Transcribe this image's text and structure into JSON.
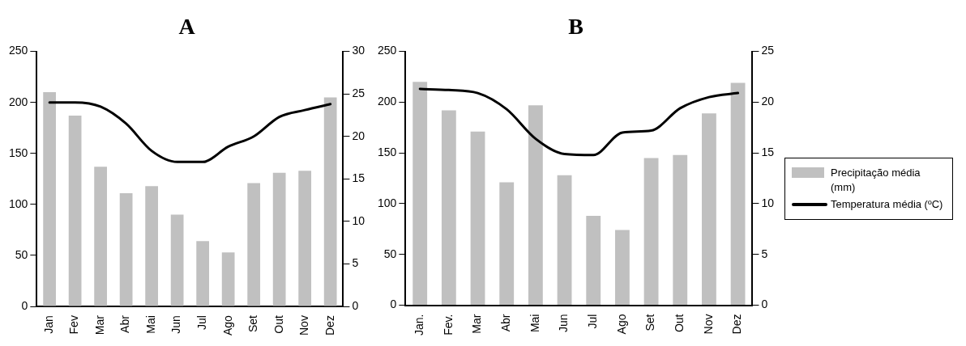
{
  "chart_data": [
    {
      "type": "bar",
      "title": "A",
      "categories": [
        "Jan",
        "Fev",
        "Mar",
        "Abr",
        "Mai",
        "Jun",
        "Jul",
        "Ago",
        "Set",
        "Out",
        "Nov",
        "Dez"
      ],
      "series": [
        {
          "color": "#c0c0c0",
          "values": [
            210,
            187,
            137,
            111,
            118,
            90,
            64,
            53,
            121,
            131,
            133,
            205
          ]
        },
        {
          "type": "line",
          "color": "#000000",
          "axis": "y2",
          "values": [
            24,
            24,
            23.5,
            21.5,
            18.3,
            17,
            17,
            18.8,
            20,
            22.3,
            23.1,
            23.8
          ]
        }
      ],
      "ylim": [
        0,
        250
      ],
      "yticks": [
        0,
        50,
        100,
        150,
        200,
        250
      ],
      "y2lim": [
        0,
        30
      ],
      "y2ticks": [
        0,
        5,
        10,
        15,
        20,
        25,
        30
      ],
      "grid": false,
      "legend": false,
      "marker": "none",
      "line_style": "solid"
    },
    {
      "type": "bar",
      "title": "B",
      "categories": [
        "Jan.",
        "Fev.",
        "Mar",
        "Abr",
        "Mai",
        "Jun",
        "Jul",
        "Ago",
        "Set",
        "Out",
        "Nov",
        "Dez"
      ],
      "series": [
        {
          "name": "Precipitação média (mm)",
          "color": "#c0c0c0",
          "values": [
            220,
            192,
            171,
            121,
            197,
            128,
            88,
            74,
            145,
            148,
            189,
            219
          ]
        },
        {
          "type": "line",
          "name": "Temperatura média (ºC)",
          "color": "#000000",
          "axis": "y2",
          "values": [
            21.3,
            21.2,
            20.9,
            19.3,
            16.4,
            14.9,
            14.8,
            17,
            17.2,
            19.4,
            20.5,
            20.9
          ]
        }
      ],
      "ylim": [
        0,
        250
      ],
      "yticks": [
        0,
        50,
        100,
        150,
        200,
        250
      ],
      "y2lim": [
        0,
        25
      ],
      "y2ticks": [
        0,
        5,
        10,
        15,
        20,
        25
      ],
      "grid": false,
      "legend": "right",
      "marker": "none",
      "line_style": "solid"
    }
  ]
}
